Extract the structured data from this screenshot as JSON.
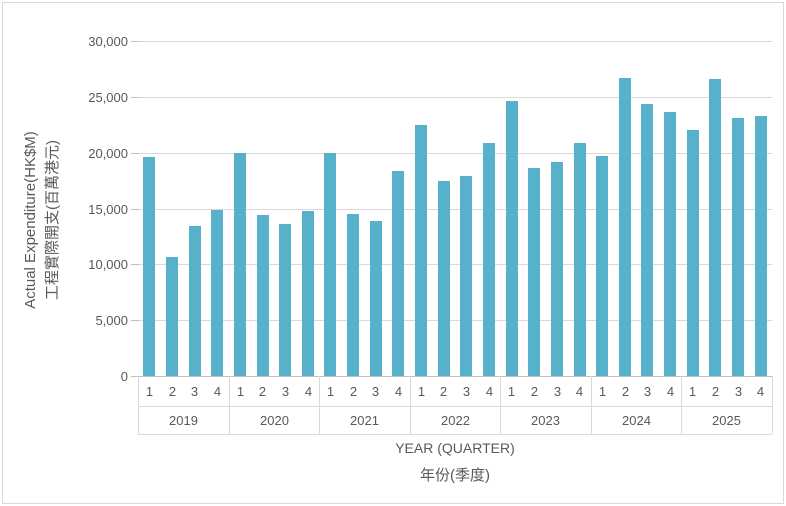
{
  "chart_data": {
    "type": "bar",
    "title": "",
    "ylabel_en": "Actual Expenditure(HK$M)",
    "ylabel_zh": "工程實際開支(百萬港元)",
    "xlabel_en": "YEAR (QUARTER)",
    "xlabel_zh": "年份(季度)",
    "ylim": [
      0,
      30000
    ],
    "ytick_interval": 5000,
    "ytick_labels": [
      "30,000",
      "25,000",
      "20,000",
      "15,000",
      "10,000",
      "5,000",
      "0"
    ],
    "grid": true,
    "legend": "none",
    "bar_color": "#58B1CB",
    "gridline_color": "#D9D9D9",
    "axis_text_color": "#595959",
    "quarter_labels": [
      "1",
      "2",
      "3",
      "4"
    ],
    "years": [
      "2019",
      "2020",
      "2021",
      "2022",
      "2023",
      "2024",
      "2025"
    ],
    "series": [
      {
        "year": "2019",
        "values": [
          19600,
          10700,
          13400,
          14900
        ]
      },
      {
        "year": "2020",
        "values": [
          20000,
          14400,
          13600,
          14800
        ]
      },
      {
        "year": "2021",
        "values": [
          20000,
          14500,
          13900,
          18400
        ]
      },
      {
        "year": "2022",
        "values": [
          22500,
          17500,
          17900,
          20900
        ]
      },
      {
        "year": "2023",
        "values": [
          24600,
          18600,
          19200,
          20900
        ]
      },
      {
        "year": "2024",
        "values": [
          19700,
          26700,
          24400,
          23600
        ]
      },
      {
        "year": "2025",
        "values": [
          22000,
          26600,
          23100,
          23300
        ]
      }
    ]
  }
}
